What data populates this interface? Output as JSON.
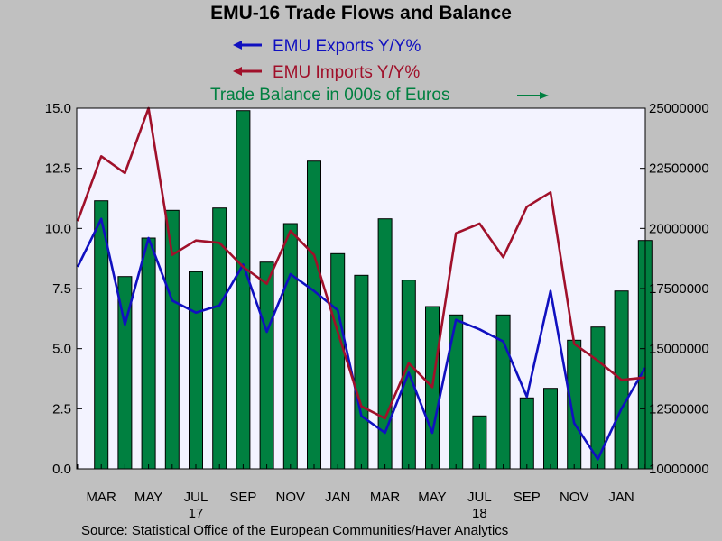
{
  "chart_data": {
    "type": "bar+line",
    "title": "EMU-16 Trade Flows and Balance",
    "background_color": "#c0c0c0",
    "plot_background_color": "#f3f3ff",
    "legend": [
      {
        "label": "EMU Exports Y/Y%",
        "color": "#1010c0",
        "arrow": "left"
      },
      {
        "label": "EMU Imports Y/Y%",
        "color": "#a0102a",
        "arrow": "left"
      },
      {
        "label": "Trade Balance in 000s of Euros",
        "color": "#008040",
        "arrow": "right"
      }
    ],
    "left_axis": {
      "min": 0,
      "max": 15,
      "ticks": [
        "0.0",
        "2.5",
        "5.0",
        "7.5",
        "10.0",
        "12.5",
        "15.0"
      ]
    },
    "right_axis": {
      "min": 10000000,
      "max": 25000000,
      "ticks": [
        "10000000",
        "12500000",
        "15000000",
        "17500000",
        "20000000",
        "22500000",
        "25000000"
      ]
    },
    "x_axis": {
      "month_labels": [
        "MAR",
        "MAY",
        "JUL",
        "SEP",
        "NOV",
        "JAN",
        "MAR",
        "MAY",
        "JUL",
        "SEP",
        "NOV",
        "JAN"
      ],
      "year_labels": [
        "17",
        "18"
      ]
    },
    "months": [
      "2017-02",
      "2017-03",
      "2017-04",
      "2017-05",
      "2017-06",
      "2017-07",
      "2017-08",
      "2017-09",
      "2017-10",
      "2017-11",
      "2017-12",
      "2018-01",
      "2018-02",
      "2018-03",
      "2018-04",
      "2018-05",
      "2018-06",
      "2018-07",
      "2018-08",
      "2018-09",
      "2018-10",
      "2018-11",
      "2018-12",
      "2019-01",
      "2019-02"
    ],
    "series": [
      {
        "name": "EMU Exports Y/Y%",
        "type": "line",
        "axis": "left",
        "color": "#1010c0",
        "values": [
          8.4,
          10.4,
          6.0,
          9.6,
          7.0,
          6.5,
          6.8,
          8.5,
          5.7,
          8.1,
          7.4,
          6.6,
          2.2,
          1.5,
          4.0,
          1.5,
          6.2,
          5.8,
          5.3,
          3.0,
          7.4,
          1.9,
          0.4,
          2.5,
          4.2
        ]
      },
      {
        "name": "EMU Imports Y/Y%",
        "type": "line",
        "axis": "left",
        "color": "#a0102a",
        "values": [
          10.3,
          13.0,
          12.3,
          15.0,
          8.9,
          9.5,
          9.4,
          8.4,
          7.7,
          9.9,
          8.9,
          5.7,
          2.6,
          2.1,
          4.4,
          3.4,
          9.8,
          10.2,
          8.8,
          10.9,
          11.5,
          5.2,
          4.5,
          3.7,
          3.8
        ]
      },
      {
        "name": "Trade Balance in 000s of Euros",
        "type": "bar",
        "axis": "right",
        "color": "#008040",
        "values": [
          null,
          21150000,
          18000000,
          19600000,
          20750000,
          18200000,
          20850000,
          24900000,
          18600000,
          20200000,
          22800000,
          18950000,
          18050000,
          20400000,
          17850000,
          16750000,
          16400000,
          12200000,
          16400000,
          12950000,
          13350000,
          15350000,
          15900000,
          17400000,
          19500000
        ]
      }
    ],
    "source": "Source:  Statistical Office of the European Communities/Haver Analytics"
  }
}
